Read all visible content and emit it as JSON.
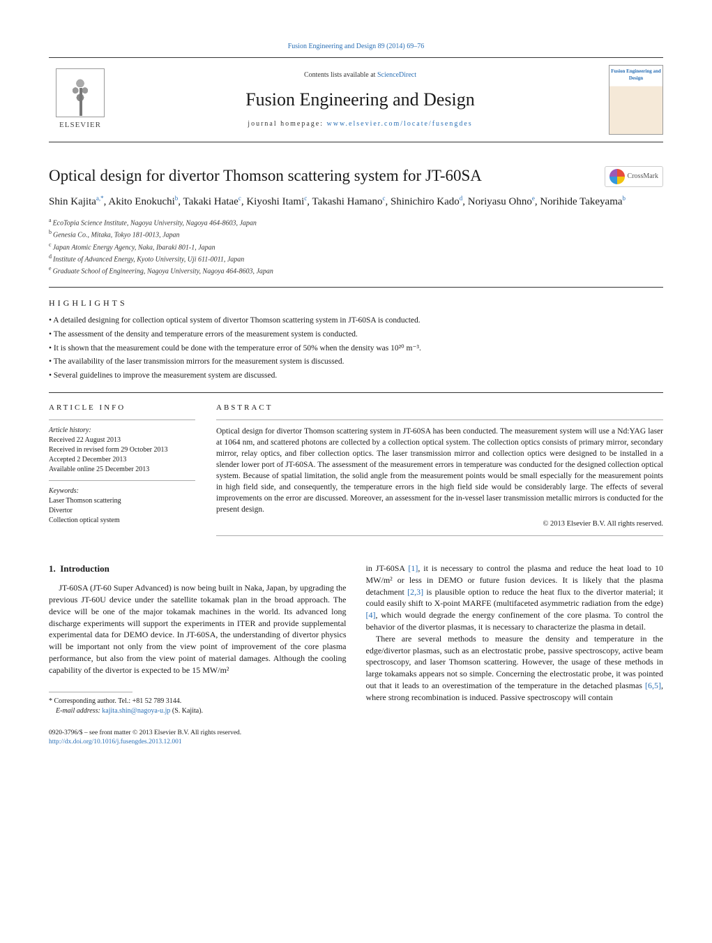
{
  "header": {
    "top_link": "Fusion Engineering and Design 89 (2014) 69–76",
    "contents_prefix": "Contents lists available at ",
    "contents_link": "ScienceDirect",
    "journal_name": "Fusion Engineering and Design",
    "jhome_prefix": "journal homepage: ",
    "jhome_link": "www.elsevier.com/locate/fusengdes",
    "publisher": "ELSEVIER",
    "cover_text": "Fusion Engineering and Design"
  },
  "crossmark": "CrossMark",
  "title": "Optical design for divertor Thomson scattering system for JT-60SA",
  "authors": [
    {
      "name": "Shin Kajita",
      "aff": "a,*"
    },
    {
      "name": "Akito Enokuchi",
      "aff": "b"
    },
    {
      "name": "Takaki Hatae",
      "aff": "c"
    },
    {
      "name": "Kiyoshi Itami",
      "aff": "c"
    },
    {
      "name": "Takashi Hamano",
      "aff": "c"
    },
    {
      "name": "Shinichiro Kado",
      "aff": "d"
    },
    {
      "name": "Noriyasu Ohno",
      "aff": "e"
    },
    {
      "name": "Norihide Takeyama",
      "aff": "b"
    }
  ],
  "affiliations": [
    {
      "sup": "a",
      "text": "EcoTopia Science Institute, Nagoya University, Nagoya 464-8603, Japan"
    },
    {
      "sup": "b",
      "text": "Genesia Co., Mitaka, Tokyo 181-0013, Japan"
    },
    {
      "sup": "c",
      "text": "Japan Atomic Energy Agency, Naka, Ibaraki 801-1, Japan"
    },
    {
      "sup": "d",
      "text": "Institute of Advanced Energy, Kyoto University, Uji 611-0011, Japan"
    },
    {
      "sup": "e",
      "text": "Graduate School of Engineering, Nagoya University, Nagoya 464-8603, Japan"
    }
  ],
  "highlights": {
    "label": "HIGHLIGHTS",
    "items": [
      "A detailed designing for collection optical system of divertor Thomson scattering system in JT-60SA is conducted.",
      "The assessment of the density and temperature errors of the measurement system is conducted.",
      "It is shown that the measurement could be done with the temperature error of 50% when the density was 10²⁰ m⁻³.",
      "The availability of the laser transmission mirrors for the measurement system is discussed.",
      "Several guidelines to improve the measurement system are discussed."
    ]
  },
  "article_info": {
    "head": "ARTICLE INFO",
    "history_label": "Article history:",
    "dates": [
      "Received 22 August 2013",
      "Received in revised form 29 October 2013",
      "Accepted 2 December 2013",
      "Available online 25 December 2013"
    ],
    "kw_label": "Keywords:",
    "keywords": [
      "Laser Thomson scattering",
      "Divertor",
      "Collection optical system"
    ]
  },
  "abstract": {
    "head": "ABSTRACT",
    "text": "Optical design for divertor Thomson scattering system in JT-60SA has been conducted. The measurement system will use a Nd:YAG laser at 1064 nm, and scattered photons are collected by a collection optical system. The collection optics consists of primary mirror, secondary mirror, relay optics, and fiber collection optics. The laser transmission mirror and collection optics were designed to be installed in a slender lower port of JT-60SA. The assessment of the measurement errors in temperature was conducted for the designed collection optical system. Because of spatial limitation, the solid angle from the measurement points would be small especially for the measurement points in high field side, and consequently, the temperature errors in the high field side would be considerably large. The effects of several improvements on the error are discussed. Moreover, an assessment for the in-vessel laser transmission metallic mirrors is conducted for the present design.",
    "copyright": "© 2013 Elsevier B.V. All rights reserved."
  },
  "body": {
    "section_num": "1.",
    "section_title": "Introduction",
    "col1_p1a": "JT-60SA (JT-60 Super Advanced) is now being built in Naka, Japan, by upgrading the previous JT-60U device under the satellite tokamak plan in the broad approach. The device will be one of the major tokamak machines in the world. Its advanced long discharge experiments will support the experiments in ITER and provide supplemental experimental data for DEMO device. In JT-60SA, the understanding of divertor physics will be important not only from the view point of improvement of the core plasma performance, but also from the view point of material damages. Although the cooling capability of the divertor is expected to be 15 MW/m²",
    "col2_p1a": "in JT-60SA ",
    "col2_p1_ref1": "[1]",
    "col2_p1b": ", it is necessary to control the plasma and reduce the heat load to 10 MW/m² or less in DEMO or future fusion devices. It is likely that the plasma detachment ",
    "col2_p1_ref2": "[2,3]",
    "col2_p1c": " is plausible option to reduce the heat flux to the divertor material; it could easily shift to X-point MARFE (multifaceted asymmetric radiation from the edge) ",
    "col2_p1_ref3": "[4]",
    "col2_p1d": ", which would degrade the energy confinement of the core plasma. To control the behavior of the divertor plasmas, it is necessary to characterize the plasma in detail.",
    "col2_p2a": "There are several methods to measure the density and temperature in the edge/divertor plasmas, such as an electrostatic probe, passive spectroscopy, active beam spectroscopy, and laser Thomson scattering. However, the usage of these methods in large tokamaks appears not so simple. Concerning the electrostatic probe, it was pointed out that it leads to an overestimation of the temperature in the detached plasmas ",
    "col2_p2_ref1": "[6,5]",
    "col2_p2b": ", where strong recombination is induced. Passive spectroscopy will contain"
  },
  "corresponding": {
    "star": "*",
    "text": "Corresponding author. Tel.: +81 52 789 3144.",
    "email_label": "E-mail address: ",
    "email": "kajita.shin@nagoya-u.jp",
    "email_suffix": " (S. Kajita)."
  },
  "footer": {
    "line1": "0920-3796/$ – see front matter © 2013 Elsevier B.V. All rights reserved.",
    "doi": "http://dx.doi.org/10.1016/j.fusengdes.2013.12.001"
  },
  "colors": {
    "link": "#2a6fb5",
    "text": "#1a1a1a",
    "rule": "#333333"
  }
}
